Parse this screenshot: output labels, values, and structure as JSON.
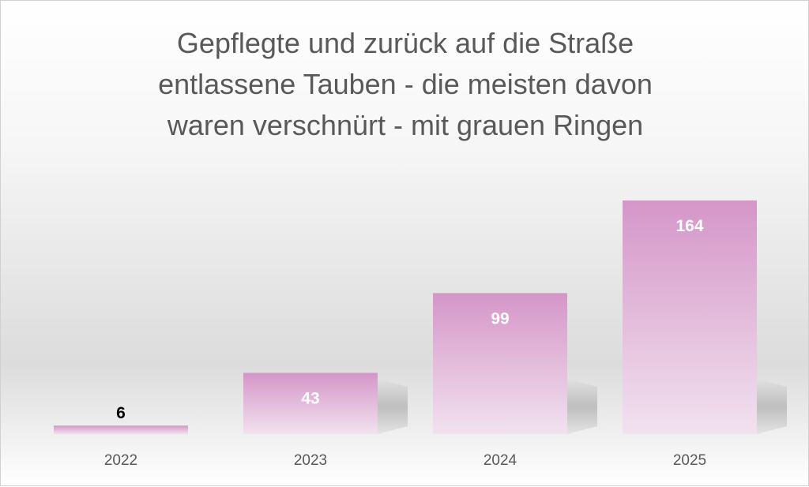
{
  "chart_data": {
    "type": "bar",
    "title": "Gepflegte und zurück auf die Straße entlassene Tauben - die meisten davon waren verschnürt - mit grauen Ringen",
    "title_lines": [
      "Gepflegte und zurück auf die Straße",
      "entlassene Tauben - die meisten davon",
      "waren verschnürt - mit grauen Ringen"
    ],
    "categories": [
      "2022",
      "2023",
      "2024",
      "2025"
    ],
    "values": [
      6,
      43,
      99,
      164
    ],
    "xlabel": "",
    "ylabel": "",
    "ylim": [
      0,
      164
    ],
    "grid": false,
    "legend": "none",
    "bar_color_top": "#d596c8",
    "bar_color_bottom": "#f1e2ef",
    "label_colors": {
      "outside": "#000000",
      "inside": "#ffffff"
    }
  }
}
